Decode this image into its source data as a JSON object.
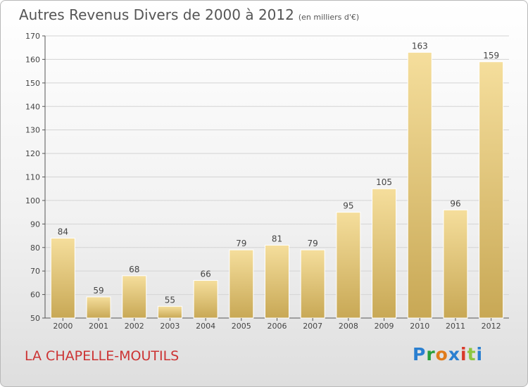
{
  "commune": "LA CHAPELLE-MOUTILS",
  "logo": {
    "text": "Proxiti",
    "letter_colors": [
      "#2a7fd0",
      "#2a9f3a",
      "#e07b1a",
      "#2a7fd0",
      "#d93a2a",
      "#8cc63f",
      "#2a7fd0"
    ]
  },
  "colors": {
    "bar_light": "#f5de9c",
    "bar_dark": "#c8a855",
    "bar_border": "#ffffff",
    "grid": "#d4d4d4",
    "axis": "#555555",
    "commune": "#cc3333"
  },
  "chart_data": {
    "type": "bar",
    "title": "Autres Revenus Divers de 2000 à 2012",
    "subtitle": "(en milliers d'€)",
    "categories": [
      "2000",
      "2001",
      "2002",
      "2003",
      "2004",
      "2005",
      "2006",
      "2007",
      "2008",
      "2009",
      "2010",
      "2011",
      "2012"
    ],
    "values": [
      84,
      59,
      68,
      55,
      66,
      79,
      81,
      79,
      95,
      105,
      163,
      96,
      159
    ],
    "ylim": [
      50,
      170
    ],
    "yticks": [
      50,
      60,
      70,
      80,
      90,
      100,
      110,
      120,
      130,
      140,
      150,
      160,
      170
    ],
    "grid": true,
    "xlabel": "",
    "ylabel": ""
  }
}
